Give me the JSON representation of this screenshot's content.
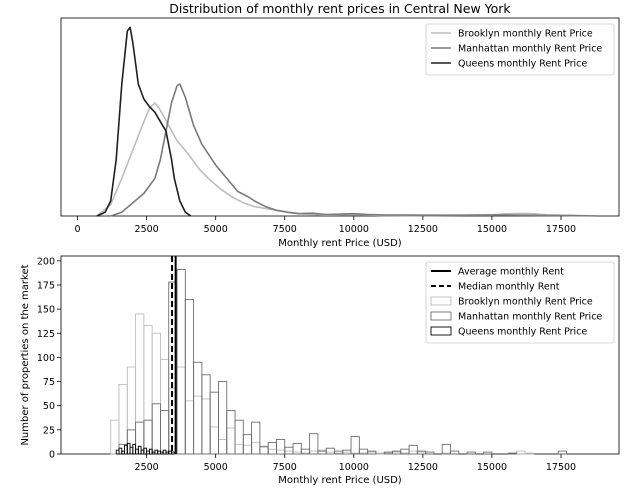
{
  "chart_data": [
    {
      "type": "line",
      "title": "Distribution of monthly rent prices in Central New York",
      "xlabel": "Monthly rent Price (USD)",
      "ylabel": "",
      "xlim": [
        -600,
        19600
      ],
      "ylim": [
        0,
        1.05
      ],
      "xticks": [
        0,
        2500,
        5000,
        7500,
        10000,
        12500,
        15000,
        17500
      ],
      "yticks_visible": false,
      "grid": false,
      "legend_position": "top-right",
      "series": [
        {
          "name": "Brooklyn monthly Rent Price",
          "color": "#bdbdbd",
          "x": [
            700,
            1200,
            1600,
            2000,
            2400,
            2600,
            2800,
            3000,
            3300,
            3600,
            4000,
            4400,
            4800,
            5200,
            5600,
            6000,
            6400,
            6800,
            7200,
            7600,
            8200,
            9000,
            10000,
            11000,
            12000,
            13000,
            14000,
            15000,
            15500,
            16000,
            16500,
            17000,
            18000
          ],
          "y": [
            0.0,
            0.06,
            0.2,
            0.35,
            0.5,
            0.57,
            0.6,
            0.56,
            0.48,
            0.4,
            0.33,
            0.25,
            0.19,
            0.14,
            0.1,
            0.07,
            0.05,
            0.04,
            0.03,
            0.02,
            0.01,
            0.005,
            0.008,
            0.003,
            0.002,
            0.003,
            0.004,
            0.006,
            0.012,
            0.014,
            0.012,
            0.006,
            0.002
          ]
        },
        {
          "name": "Manhattan monthly Rent Price",
          "color": "#7a7a7a",
          "x": [
            1200,
            1600,
            2000,
            2400,
            2800,
            3000,
            3200,
            3400,
            3600,
            3700,
            3900,
            4200,
            4500,
            5000,
            5400,
            5800,
            6200,
            6400,
            6800,
            7200,
            7600,
            8000,
            8500,
            9000,
            10000,
            10500,
            11000,
            12000,
            13000,
            14000,
            15000,
            16000,
            17000,
            18000,
            18900
          ],
          "y": [
            0.0,
            0.02,
            0.07,
            0.12,
            0.2,
            0.3,
            0.45,
            0.6,
            0.69,
            0.7,
            0.63,
            0.48,
            0.38,
            0.27,
            0.2,
            0.13,
            0.1,
            0.08,
            0.05,
            0.03,
            0.02,
            0.012,
            0.015,
            0.008,
            0.012,
            0.008,
            0.006,
            0.005,
            0.004,
            0.004,
            0.006,
            0.004,
            0.003,
            0.002,
            0.0
          ]
        },
        {
          "name": "Queens monthly Rent Price",
          "color": "#1f1f1f",
          "x": [
            700,
            1000,
            1200,
            1400,
            1600,
            1800,
            1900,
            2000,
            2200,
            2400,
            2600,
            2800,
            3000,
            3200,
            3400,
            3500,
            3700,
            3900,
            4100
          ],
          "y": [
            0.0,
            0.02,
            0.08,
            0.3,
            0.7,
            0.98,
            1.0,
            0.92,
            0.7,
            0.62,
            0.58,
            0.55,
            0.5,
            0.45,
            0.3,
            0.2,
            0.08,
            0.02,
            0.0
          ]
        }
      ]
    },
    {
      "type": "bar",
      "title": "",
      "xlabel": "Monthly rent Price (USD)",
      "ylabel": "Number of properties on the market",
      "xlim": [
        -600,
        19600
      ],
      "ylim": [
        0,
        205
      ],
      "xticks": [
        2500,
        5000,
        7500,
        10000,
        12500,
        15000,
        17500
      ],
      "yticks": [
        0,
        25,
        50,
        75,
        100,
        125,
        150,
        175,
        200
      ],
      "grid": false,
      "legend_position": "top-right",
      "vlines": [
        {
          "name": "Average monthly Rent",
          "x": 3550,
          "color": "#000000",
          "style": "solid"
        },
        {
          "name": "Median monthly Rent",
          "x": 3420,
          "color": "#000000",
          "style": "dashed"
        }
      ],
      "series": [
        {
          "name": "Brooklyn monthly Rent Price",
          "color": "#bdbdbd",
          "bins": [
            [
              1200,
              1500,
              35
            ],
            [
              1500,
              1800,
              72
            ],
            [
              1800,
              2100,
              90
            ],
            [
              2100,
              2400,
              145
            ],
            [
              2400,
              2700,
              133
            ],
            [
              2700,
              3000,
              125
            ],
            [
              3000,
              3300,
              98
            ],
            [
              3300,
              3600,
              68
            ],
            [
              3600,
              3900,
              90
            ],
            [
              3900,
              4200,
              55
            ],
            [
              4200,
              4500,
              60
            ],
            [
              4500,
              4800,
              57
            ],
            [
              4800,
              5100,
              28
            ],
            [
              5100,
              5400,
              15
            ],
            [
              5400,
              5700,
              27
            ],
            [
              5700,
              6000,
              10
            ],
            [
              6000,
              6300,
              9
            ],
            [
              6300,
              6600,
              12
            ],
            [
              6600,
              6900,
              7
            ],
            [
              6900,
              7200,
              5
            ],
            [
              7200,
              7500,
              4
            ],
            [
              7500,
              7800,
              3
            ],
            [
              7800,
              8100,
              2
            ],
            [
              8100,
              8400,
              1
            ],
            [
              8400,
              8700,
              3
            ],
            [
              8700,
              9000,
              4
            ],
            [
              9000,
              9300,
              2
            ],
            [
              9300,
              9600,
              1
            ],
            [
              9600,
              9900,
              2
            ],
            [
              9900,
              10200,
              1
            ],
            [
              10200,
              10500,
              1
            ],
            [
              10500,
              10800,
              2
            ],
            [
              10800,
              11100,
              1
            ],
            [
              11100,
              11400,
              1
            ],
            [
              11400,
              11700,
              2
            ],
            [
              11700,
              12000,
              1
            ],
            [
              12000,
              12300,
              3
            ],
            [
              12300,
              12600,
              2
            ],
            [
              13200,
              13500,
              1
            ],
            [
              15900,
              16200,
              3
            ],
            [
              16200,
              16500,
              1
            ]
          ]
        },
        {
          "name": "Manhattan monthly Rent Price",
          "color": "#6e6e6e",
          "bins": [
            [
              1500,
              1800,
              10
            ],
            [
              1800,
              2100,
              25
            ],
            [
              2100,
              2400,
              33
            ],
            [
              2400,
              2700,
              35
            ],
            [
              2700,
              3000,
              52
            ],
            [
              3000,
              3300,
              45
            ],
            [
              3300,
              3600,
              178
            ],
            [
              3600,
              3900,
              191
            ],
            [
              3900,
              4200,
              160
            ],
            [
              4200,
              4500,
              95
            ],
            [
              4500,
              4800,
              82
            ],
            [
              4800,
              5100,
              64
            ],
            [
              5100,
              5400,
              75
            ],
            [
              5400,
              5700,
              45
            ],
            [
              5700,
              6000,
              35
            ],
            [
              6000,
              6300,
              20
            ],
            [
              6300,
              6600,
              33
            ],
            [
              6600,
              6900,
              8
            ],
            [
              6900,
              7200,
              12
            ],
            [
              7200,
              7500,
              15
            ],
            [
              7500,
              7800,
              7
            ],
            [
              7800,
              8100,
              11
            ],
            [
              8100,
              8400,
              5
            ],
            [
              8400,
              8700,
              21
            ],
            [
              8700,
              9000,
              3
            ],
            [
              9000,
              9300,
              6
            ],
            [
              9300,
              9600,
              3
            ],
            [
              9600,
              9900,
              4
            ],
            [
              9900,
              10200,
              18
            ],
            [
              10200,
              10500,
              5
            ],
            [
              10500,
              10800,
              3
            ],
            [
              11100,
              11400,
              2
            ],
            [
              11400,
              11700,
              3
            ],
            [
              11700,
              12000,
              5
            ],
            [
              12000,
              12300,
              9
            ],
            [
              12300,
              12600,
              3
            ],
            [
              12600,
              12900,
              2
            ],
            [
              13200,
              13500,
              10
            ],
            [
              13500,
              13800,
              3
            ],
            [
              14100,
              14400,
              2
            ],
            [
              14700,
              15000,
              2
            ],
            [
              15600,
              15900,
              1
            ],
            [
              17400,
              17700,
              3
            ]
          ]
        },
        {
          "name": "Queens monthly Rent Price",
          "color": "#000000",
          "bins": [
            [
              1400,
              1500,
              4
            ],
            [
              1500,
              1600,
              6
            ],
            [
              1600,
              1700,
              3
            ],
            [
              1700,
              1800,
              9
            ],
            [
              1800,
              1900,
              11
            ],
            [
              1900,
              2000,
              7
            ],
            [
              2000,
              2100,
              10
            ],
            [
              2100,
              2200,
              5
            ],
            [
              2200,
              2300,
              8
            ],
            [
              2300,
              2400,
              4
            ],
            [
              2400,
              2500,
              6
            ],
            [
              2500,
              2600,
              3
            ],
            [
              2600,
              2700,
              5
            ],
            [
              2700,
              2800,
              2
            ],
            [
              2800,
              2900,
              4
            ],
            [
              2900,
              3000,
              3
            ],
            [
              3000,
              3100,
              2
            ],
            [
              3100,
              3200,
              4
            ],
            [
              3200,
              3300,
              2
            ],
            [
              3300,
              3400,
              3
            ],
            [
              3400,
              3500,
              2
            ]
          ]
        }
      ]
    }
  ]
}
